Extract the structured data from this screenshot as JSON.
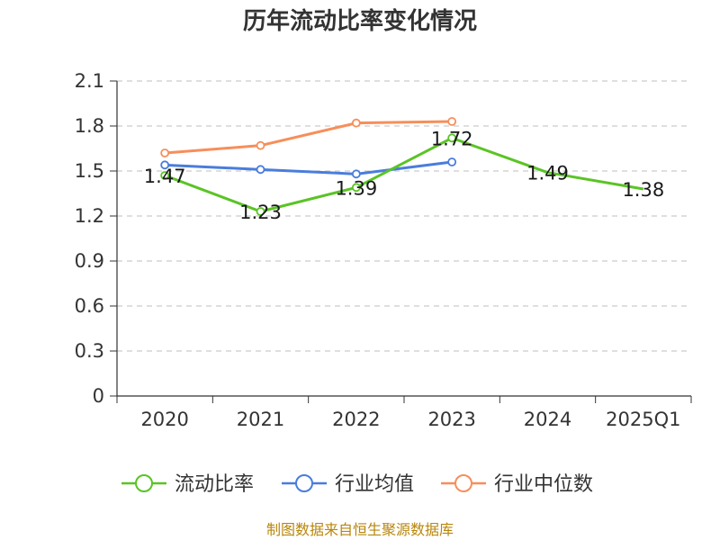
{
  "chart_data": {
    "type": "line",
    "title": "历年流动比率变化情况",
    "categories": [
      "2020",
      "2021",
      "2022",
      "2023",
      "2024",
      "2025Q1"
    ],
    "ylim": [
      0,
      2.1
    ],
    "yticks": [
      "0",
      "0.3",
      "0.6",
      "0.9",
      "1.2",
      "1.5",
      "1.8",
      "2.1"
    ],
    "ytick_values": [
      0,
      0.3,
      0.6,
      0.9,
      1.2,
      1.5,
      1.8,
      2.1
    ],
    "grid": true,
    "legend_position": "bottom",
    "series": [
      {
        "name": "流动比率",
        "color": "#5ac425",
        "values": [
          1.47,
          1.23,
          1.39,
          1.72,
          1.49,
          1.38
        ],
        "labels": [
          "1.47",
          "1.23",
          "1.39",
          "1.72",
          "1.49",
          "1.38"
        ],
        "markers": [
          true,
          true,
          true,
          true,
          false,
          false
        ]
      },
      {
        "name": "行业均值",
        "color": "#4a7ddc",
        "values": [
          1.54,
          1.51,
          1.48,
          1.56,
          null,
          null
        ]
      },
      {
        "name": "行业中位数",
        "color": "#f78e5a",
        "values": [
          1.62,
          1.67,
          1.82,
          1.83,
          null,
          null
        ]
      }
    ]
  },
  "source": "制图数据来自恒生聚源数据库"
}
